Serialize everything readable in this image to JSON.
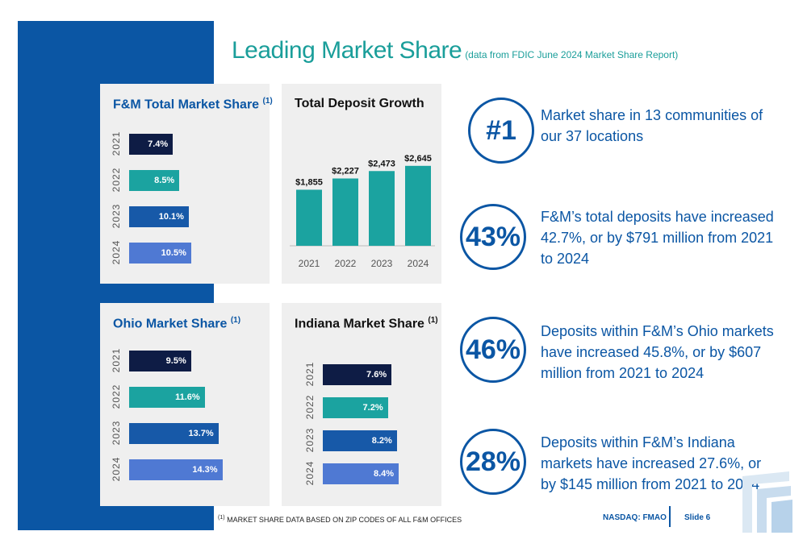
{
  "header": {
    "title": "Leading Market Share",
    "subtitle": "(data from FDIC June 2024 Market Share Report)"
  },
  "colors": {
    "navy": "#0e1c45",
    "teal": "#1ba3a0",
    "blue": "#1759a8",
    "lightblue": "#4f79d3",
    "brand_blue": "#0b56a4",
    "title_teal": "#1a9e9a"
  },
  "chart_data": [
    {
      "type": "bar",
      "orientation": "horizontal",
      "title": "F&M Total Market Share",
      "title_note": "(1)",
      "categories": [
        "2021",
        "2022",
        "2023",
        "2024"
      ],
      "values": [
        7.4,
        8.5,
        10.1,
        10.5
      ],
      "labels": [
        "7.4%",
        "8.5%",
        "10.1%",
        "10.5%"
      ]
    },
    {
      "type": "bar",
      "orientation": "vertical",
      "title": "Total Deposit Growth",
      "categories": [
        "2021",
        "2022",
        "2023",
        "2024"
      ],
      "values": [
        1855,
        2227,
        2473,
        2645
      ],
      "labels": [
        "$1,855",
        "$2,227",
        "$2,473",
        "$2,645"
      ]
    },
    {
      "type": "bar",
      "orientation": "horizontal",
      "title": "Ohio Market Share",
      "title_note": "(1)",
      "categories": [
        "2021",
        "2022",
        "2023",
        "2024"
      ],
      "values": [
        9.5,
        11.6,
        13.7,
        14.3
      ],
      "labels": [
        "9.5%",
        "11.6%",
        "13.7%",
        "14.3%"
      ]
    },
    {
      "type": "bar",
      "orientation": "horizontal",
      "title": "Indiana Market Share",
      "title_note": "(1)",
      "categories": [
        "2021",
        "2022",
        "2023",
        "2024"
      ],
      "values": [
        7.6,
        7.2,
        8.2,
        8.4
      ],
      "labels": [
        "7.6%",
        "7.2%",
        "8.2%",
        "8.4%"
      ]
    }
  ],
  "stats": [
    {
      "figure": "#1",
      "text": "Market share in 13 communities of our 37 locations"
    },
    {
      "figure": "43%",
      "text": "F&M’s total deposits have increased 42.7%, or by $791 million from 2021 to 2024"
    },
    {
      "figure": "46%",
      "text": "Deposits within F&M’s Ohio markets have increased 45.8%, or by $607 million from 2021 to 2024"
    },
    {
      "figure": "28%",
      "text": "Deposits within F&M’s Indiana markets have increased 27.6%, or by $145 million from 2021 to 2024"
    }
  ],
  "footer": {
    "footnote_mark": "(1)",
    "footnote": "MARKET SHARE DATA BASED ON ZIP CODES OF ALL F&M OFFICES",
    "ticker": "NASDAQ: FMAO",
    "slide": "Slide 6"
  }
}
